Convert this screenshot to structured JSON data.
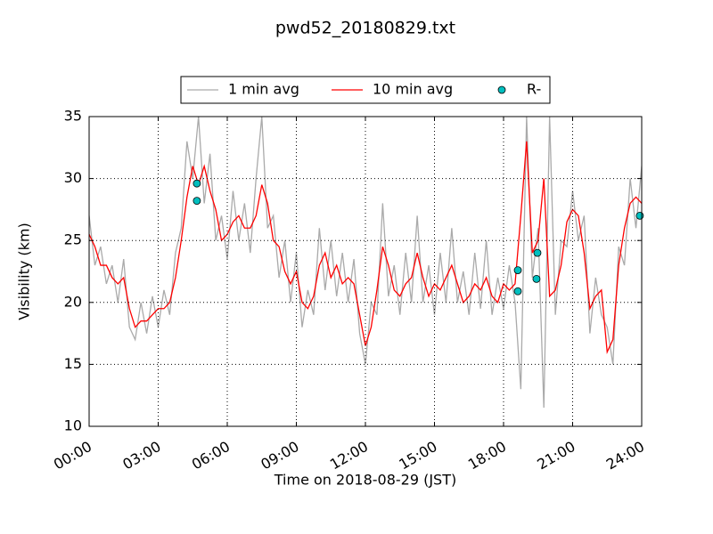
{
  "chart_data": {
    "type": "line",
    "title": "pwd52_20180829.txt",
    "xlabel": "Time on 2018-08-29 (JST)",
    "ylabel": "Visibility (km)",
    "x": [
      0,
      0.25,
      0.5,
      0.75,
      1,
      1.25,
      1.5,
      1.75,
      2,
      2.25,
      2.5,
      2.75,
      3,
      3.25,
      3.5,
      3.75,
      4,
      4.25,
      4.5,
      4.75,
      5,
      5.25,
      5.5,
      5.75,
      6,
      6.25,
      6.5,
      6.75,
      7,
      7.25,
      7.5,
      7.75,
      8,
      8.25,
      8.5,
      8.75,
      9,
      9.25,
      9.5,
      9.75,
      10,
      10.25,
      10.5,
      10.75,
      11,
      11.25,
      11.5,
      11.75,
      12,
      12.25,
      12.5,
      12.75,
      13,
      13.25,
      13.5,
      13.75,
      14,
      14.25,
      14.5,
      14.75,
      15,
      15.25,
      15.5,
      15.75,
      16,
      16.25,
      16.5,
      16.75,
      17,
      17.25,
      17.5,
      17.75,
      18,
      18.25,
      18.5,
      18.75,
      19,
      19.25,
      19.5,
      19.75,
      20,
      20.25,
      20.5,
      20.75,
      21,
      21.25,
      21.5,
      21.75,
      22,
      22.25,
      22.5,
      22.75,
      23,
      23.25,
      23.5,
      23.75,
      24
    ],
    "series": [
      {
        "name": "1 min avg",
        "color": "#aaaaaa",
        "kind": "line",
        "values": [
          27,
          23,
          24.5,
          21.5,
          23,
          20,
          23.5,
          18,
          17,
          20,
          17.5,
          20.5,
          18,
          21,
          19,
          24,
          26,
          33,
          30,
          35,
          28,
          32,
          25,
          27,
          23.5,
          29,
          25,
          28,
          24,
          30,
          35,
          26,
          27,
          22,
          25,
          20,
          24,
          18,
          21,
          19,
          26,
          21,
          25,
          20.5,
          24,
          20,
          23.5,
          17.5,
          15,
          20,
          19,
          28,
          20.5,
          23,
          19,
          24,
          20,
          27,
          20,
          23,
          19,
          24,
          20,
          26,
          20,
          22.5,
          19,
          24,
          19.5,
          25,
          19,
          22,
          19.5,
          23,
          20,
          13,
          35,
          22,
          26,
          11.5,
          35,
          19,
          25,
          24.5,
          29,
          25,
          27,
          17.5,
          22,
          19,
          18,
          15,
          24.5,
          23,
          30,
          26,
          31
        ]
      },
      {
        "name": "10 min avg",
        "color": "#ff0000",
        "kind": "line",
        "values": [
          25.5,
          24.5,
          23,
          23,
          22,
          21.5,
          22,
          19.5,
          18,
          18.5,
          18.5,
          19,
          19.5,
          19.5,
          20,
          22,
          25,
          28.5,
          31,
          29.5,
          31,
          29,
          27.5,
          25,
          25.5,
          26.5,
          27,
          26,
          26,
          27,
          29.5,
          28,
          25,
          24.5,
          22.5,
          21.5,
          22.5,
          20,
          19.5,
          20.5,
          23,
          24,
          22,
          23,
          21.5,
          22,
          21.5,
          19,
          16.5,
          18,
          21,
          24.5,
          23,
          21,
          20.5,
          21.5,
          22,
          24,
          22,
          20.5,
          21.5,
          21,
          22,
          23,
          21.5,
          20,
          20.5,
          21.5,
          21,
          22,
          20.5,
          20,
          21.5,
          21,
          21.5,
          27,
          33,
          24,
          25,
          30,
          20.5,
          21,
          23,
          26.5,
          27.5,
          27,
          24,
          19.5,
          20.5,
          21,
          16,
          17,
          23,
          26,
          28,
          28.5,
          28
        ]
      },
      {
        "name": "R-",
        "color": "#00bfbf",
        "kind": "scatter",
        "x": [
          4.68,
          4.68,
          18.62,
          18.62,
          19.47,
          19.43,
          23.92
        ],
        "values": [
          29.6,
          28.2,
          22.6,
          20.9,
          24.0,
          21.9,
          27.0
        ]
      }
    ],
    "xlim": [
      0,
      24
    ],
    "xticks": [
      {
        "value": 0,
        "label": "00:00"
      },
      {
        "value": 3,
        "label": "03:00"
      },
      {
        "value": 6,
        "label": "06:00"
      },
      {
        "value": 9,
        "label": "09:00"
      },
      {
        "value": 12,
        "label": "12:00"
      },
      {
        "value": 15,
        "label": "15:00"
      },
      {
        "value": 18,
        "label": "18:00"
      },
      {
        "value": 21,
        "label": "21:00"
      },
      {
        "value": 24,
        "label": "24:00"
      }
    ],
    "ylim": [
      10,
      35
    ],
    "yticks": [
      10,
      15,
      20,
      25,
      30,
      35
    ],
    "grid": true,
    "legend": "top"
  }
}
